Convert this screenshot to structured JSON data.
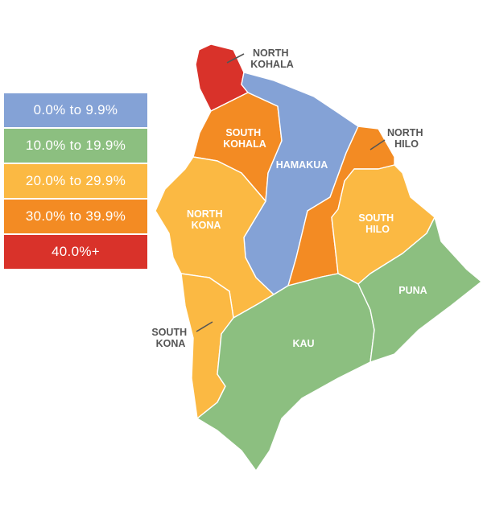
{
  "legend": {
    "items": [
      {
        "label": "0.0% to 9.9%",
        "color": "#84a2d6"
      },
      {
        "label": "10.0% to 19.9%",
        "color": "#8cbf80"
      },
      {
        "label": "20.0% to 29.9%",
        "color": "#fbb943"
      },
      {
        "label": "30.0% to 39.9%",
        "color": "#f38b23"
      },
      {
        "label": "40.0%+",
        "color": "#d9322a"
      }
    ]
  },
  "districts": [
    {
      "name_lines": [
        "NORTH",
        "KOHALA"
      ],
      "legend_index": 4
    },
    {
      "name_lines": [
        "SOUTH",
        "KOHALA"
      ],
      "legend_index": 3
    },
    {
      "name_lines": [
        "HAMAKUA"
      ],
      "legend_index": 0
    },
    {
      "name_lines": [
        "NORTH",
        "HILO"
      ],
      "legend_index": 3
    },
    {
      "name_lines": [
        "SOUTH",
        "HILO"
      ],
      "legend_index": 2
    },
    {
      "name_lines": [
        "NORTH",
        "KONA"
      ],
      "legend_index": 2
    },
    {
      "name_lines": [
        "SOUTH",
        "KONA"
      ],
      "legend_index": 2
    },
    {
      "name_lines": [
        "KAU"
      ],
      "legend_index": 1
    },
    {
      "name_lines": [
        "PUNA"
      ],
      "legend_index": 1
    }
  ]
}
